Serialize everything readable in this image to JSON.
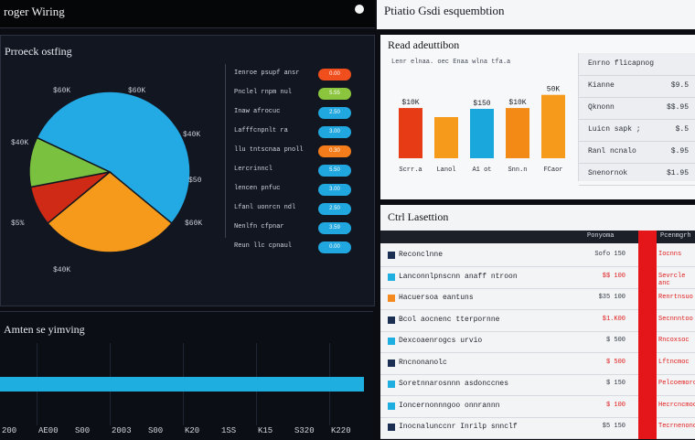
{
  "left_header": {
    "title": "roger Wiring"
  },
  "pie_panel": {
    "title": "Prroeck ostfing",
    "labels": [
      "$60K",
      "$60K",
      "$40K",
      "$40K",
      "$50",
      "$5%",
      "$60K",
      "$40K"
    ],
    "chart_data": {
      "type": "pie",
      "slices": [
        {
          "name": "Blue",
          "value": 54,
          "color": "#23a9e3"
        },
        {
          "name": "Orange",
          "value": 28,
          "color": "#f59a1b"
        },
        {
          "name": "Red",
          "value": 8,
          "color": "#cf2a15"
        },
        {
          "name": "Green",
          "value": 10,
          "color": "#7ac13f"
        }
      ]
    },
    "legend": [
      {
        "text": "Ienroe psupf ansr",
        "pill": "0.00",
        "color": "#f04e1c"
      },
      {
        "text": "Pnclel rnpm nul",
        "pill": "5.55",
        "color": "#8ac53d"
      },
      {
        "text": "Inaw afrocuc",
        "pill": "2.50",
        "color": "#21a7df"
      },
      {
        "text": "Lafffcnpnlt ra",
        "pill": "3.00",
        "color": "#21a7df"
      },
      {
        "text": "llu tntscnaa pnoll",
        "pill": "0.30",
        "color": "#f57c1a"
      },
      {
        "text": "Lercrinncl",
        "pill": "5.50",
        "color": "#21a7df"
      },
      {
        "text": "lencen pnfuc",
        "pill": "3.00",
        "color": "#21a7df"
      },
      {
        "text": "Lfanl uonrcn ndl",
        "pill": "2.50",
        "color": "#21a7df"
      },
      {
        "text": "Nenlfn cfpnar",
        "pill": "3.59",
        "color": "#21a7df"
      },
      {
        "text": "Reun llc cpnaul",
        "pill": "0.00",
        "color": "#21a7df"
      }
    ]
  },
  "bar_panel": {
    "title": "Amten se yimving",
    "x_ticks": [
      "200",
      "AE00",
      "S00",
      "2003",
      "S00",
      "K20",
      "1SS",
      "K15",
      "S320",
      "K220"
    ],
    "chart_data": {
      "type": "bar",
      "orientation": "horizontal",
      "values": [
        100
      ],
      "xlim": [
        0,
        100
      ]
    }
  },
  "right_header": {
    "title": "Ptiatio Gsdi esquembtion"
  },
  "vbar_panel": {
    "title": "Read adeuttibon",
    "subtitle": "Lenr elnaa. oec Enaa wlna tfa.a",
    "chart_data": {
      "type": "bar",
      "categories": [
        "Scrr.a",
        "Lanol",
        "A1 ot",
        "Snn.n",
        "FCaor"
      ],
      "values": [
        61,
        50,
        60,
        61,
        77
      ],
      "labels": [
        "$10K",
        "",
        "$150",
        "$10K",
        "50K"
      ],
      "colors": [
        "#e63b15",
        "#f59a1b",
        "#1aa7dc",
        "#f28a15",
        "#f59a1b"
      ],
      "ylim": [
        0,
        100
      ]
    }
  },
  "side_table": {
    "rows": [
      {
        "a": "Enrno flicapnog",
        "b": ""
      },
      {
        "a": "Kianne",
        "b": "$9.5"
      },
      {
        "a": "Qknonn",
        "b": "$$.95"
      },
      {
        "a": "Luicn sapk ;",
        "b": "$.5"
      },
      {
        "a": "Ranl ncnalo",
        "b": "$.95"
      },
      {
        "a": "Snenornok",
        "b": "$1.95"
      }
    ]
  },
  "table_panel": {
    "title": "Ctrl Lasettion",
    "header": {
      "col_a": "Ponyoma",
      "col_b": "Pcenmgrh"
    },
    "rows": [
      {
        "name": "Reconclnne",
        "value": "Sofo 150",
        "right": "Iocnns",
        "color": "#1b2f52"
      },
      {
        "name": "Lanconnlpnscnn anaff ntroon",
        "value": "$$ 100",
        "right": "Sevrcle anc",
        "color": "#1eaee0"
      },
      {
        "name": "Hacuersoa eantuns",
        "value": "$35 100",
        "right": "Renrtnsuo",
        "color": "#f58a1f"
      },
      {
        "name": "Bcol aocnenc tterpornne",
        "value": "$1.K00",
        "right": "Secnnntoo",
        "color": "#1b2f52"
      },
      {
        "name": "Dexcoaenrogcs urvio",
        "value": "$ 500",
        "right": "Rncoxsoc",
        "color": "#1eaee0"
      },
      {
        "name": "Rncnonanolc",
        "value": "$ 500",
        "right": "Lftncmoc",
        "color": "#1b2f52"
      },
      {
        "name": "Soretnnarosnnn asdonccnes",
        "value": "$ 150",
        "right": "Pelcoemorc",
        "color": "#1eaee0"
      },
      {
        "name": "Ioncernonnngoo onnrannn",
        "value": "$ 100",
        "right": "Hecrcncmoo",
        "color": "#1eaee0"
      },
      {
        "name": "Inocnalunccnr Inrilp snnclf",
        "value": "$5 150",
        "right": "Tecrnenonc",
        "color": "#1b2f52"
      }
    ]
  }
}
